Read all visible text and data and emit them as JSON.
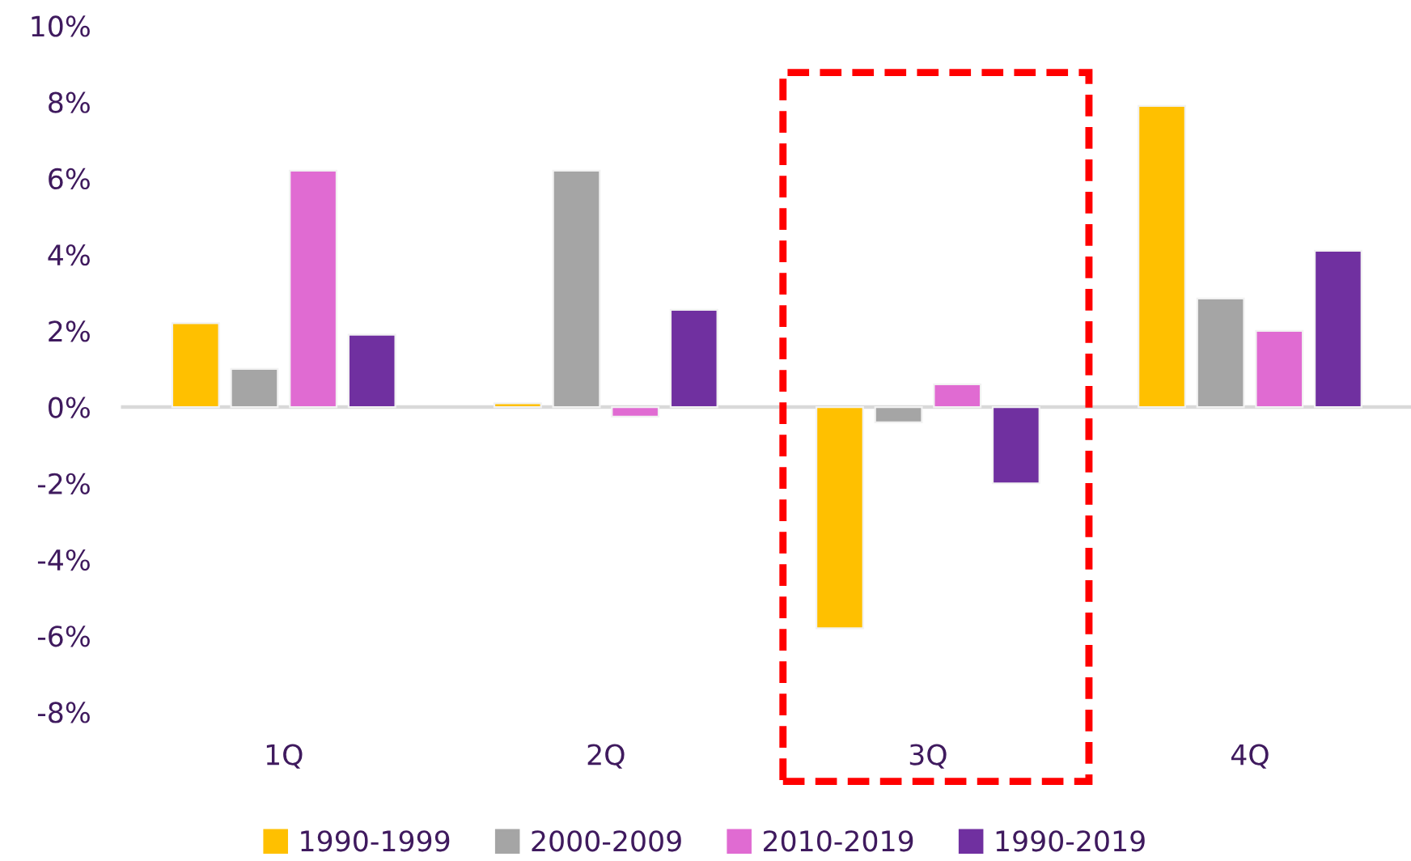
{
  "chart_data": {
    "type": "bar",
    "categories": [
      "1Q",
      "2Q",
      "3Q",
      "4Q"
    ],
    "series": [
      {
        "name": "1990-1999",
        "color": "#ffc000",
        "values": [
          2.2,
          0.1,
          -5.8,
          7.9
        ]
      },
      {
        "name": "2000-2009",
        "color": "#a5a5a5",
        "values": [
          1.0,
          6.2,
          -0.4,
          2.85
        ]
      },
      {
        "name": "2010-2019",
        "color": "#e06bd2",
        "values": [
          6.2,
          -0.25,
          0.6,
          2.0
        ]
      },
      {
        "name": "1990-2019",
        "color": "#7030a0",
        "values": [
          1.9,
          2.55,
          -2.0,
          4.1
        ]
      }
    ],
    "ylim": [
      -8,
      10
    ],
    "yticks": [
      {
        "value": -8,
        "label": "-8%"
      },
      {
        "value": -6,
        "label": "-6%"
      },
      {
        "value": -4,
        "label": "-4%"
      },
      {
        "value": -2,
        "label": "-2%"
      },
      {
        "value": 0,
        "label": "0%"
      },
      {
        "value": 2,
        "label": "2%"
      },
      {
        "value": 4,
        "label": "4%"
      },
      {
        "value": 6,
        "label": "6%"
      },
      {
        "value": 8,
        "label": "8%"
      },
      {
        "value": 10,
        "label": "10%"
      }
    ],
    "legend": "bottom"
  }
}
